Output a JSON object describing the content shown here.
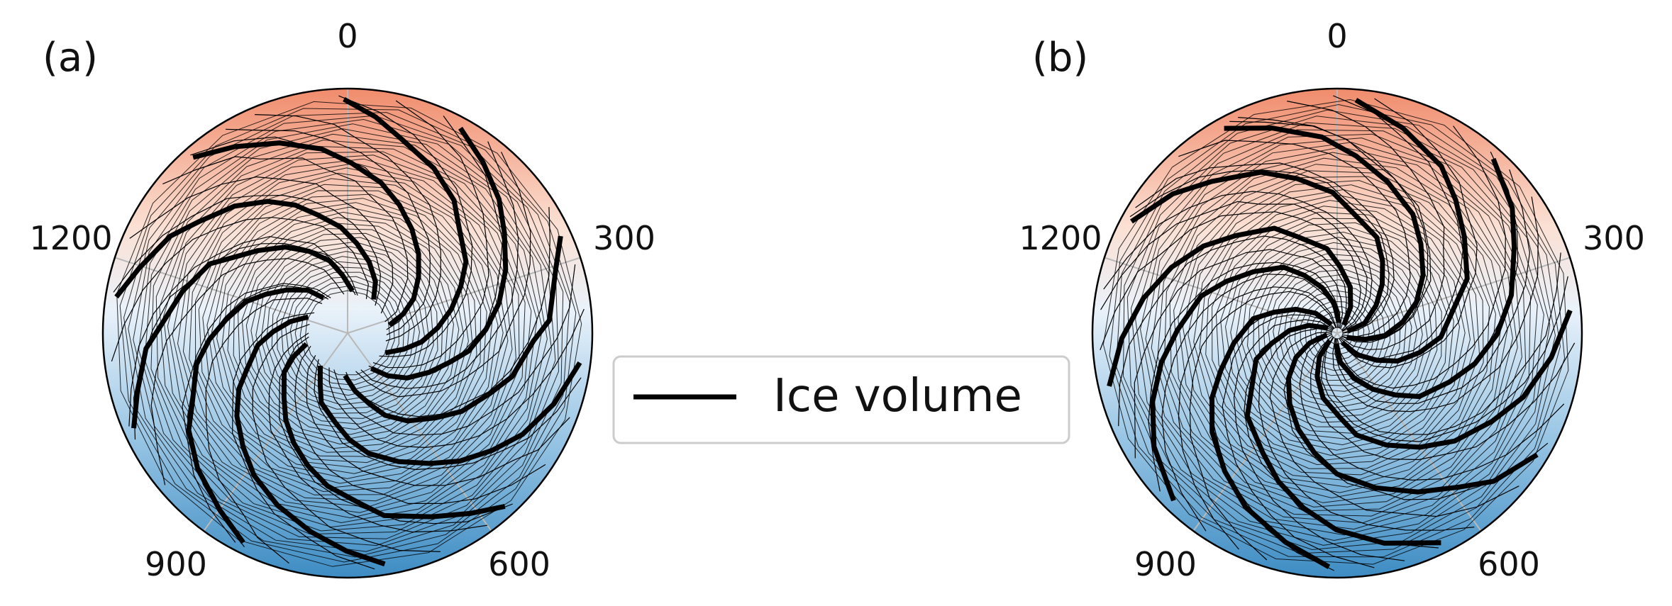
{
  "chart_data": [
    {
      "panel_label": "(a)",
      "type": "line",
      "projection": "polar",
      "angular_ticks": [
        "0",
        "300",
        "600",
        "900",
        "1200"
      ],
      "angular_period": 1500,
      "direction": "clockwise",
      "zero_location": "top",
      "background": "red at top (0) to blue at bottom (750), white mid",
      "series": [
        {
          "name": "Ice volume",
          "style": "thick black",
          "spiral_arms": 10
        },
        {
          "style": "thin black",
          "spiral_arms": 28
        }
      ]
    },
    {
      "panel_label": "(b)",
      "type": "line",
      "projection": "polar",
      "angular_ticks": [
        "0",
        "300",
        "600",
        "900",
        "1200"
      ],
      "angular_period": 1500,
      "direction": "clockwise",
      "zero_location": "top",
      "background": "red at top (0) to blue at bottom (750), white mid",
      "series": [
        {
          "name": "Ice volume",
          "style": "thick black",
          "spiral_arms": 10
        },
        {
          "style": "thin black",
          "spiral_arms": 32
        }
      ]
    }
  ],
  "legend": {
    "placement": "center",
    "entries": [
      "Ice volume"
    ]
  },
  "colors": {
    "red": "#ef8a6a",
    "white": "#f7f7f7",
    "blue": "#3e8ec4",
    "line": "#000000",
    "grid": "#bbbbbb"
  }
}
